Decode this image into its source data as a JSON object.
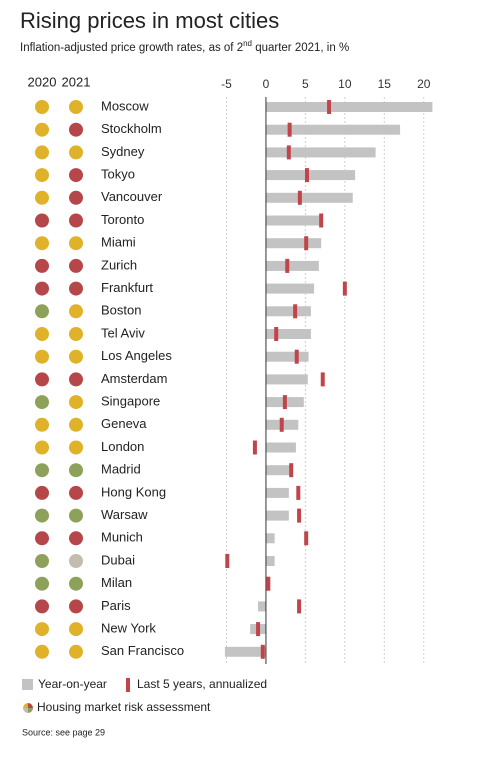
{
  "chart_data": {
    "type": "bar",
    "title": "Rising prices in most cities",
    "subtitle": [
      "Inflation-adjusted price growth rates, as of 2",
      "nd",
      " quarter 2021, in %"
    ],
    "risk_columns": [
      "2020",
      "2021"
    ],
    "categories": [
      "Moscow",
      "Stockholm",
      "Sydney",
      "Tokyo",
      "Vancouver",
      "Toronto",
      "Miami",
      "Zurich",
      "Frankfurt",
      "Boston",
      "Tel Aviv",
      "Los Angeles",
      "Amsterdam",
      "Singapore",
      "Geneva",
      "London",
      "Madrid",
      "Hong Kong",
      "Warsaw",
      "Munich",
      "Dubai",
      "Milan",
      "Paris",
      "New York",
      "San Francisco"
    ],
    "risk_2020": [
      "#e0b22a",
      "#e0b22a",
      "#e0b22a",
      "#e0b22a",
      "#e0b22a",
      "#b5474b",
      "#e0b22a",
      "#b5474b",
      "#b5474b",
      "#8da15a",
      "#e0b22a",
      "#e0b22a",
      "#b5474b",
      "#8da15a",
      "#e0b22a",
      "#e0b22a",
      "#8da15a",
      "#b5474b",
      "#8da15a",
      "#b5474b",
      "#8da15a",
      "#8da15a",
      "#b5474b",
      "#e0b22a",
      "#e0b22a"
    ],
    "risk_2021": [
      "#e0b22a",
      "#b5474b",
      "#e0b22a",
      "#b5474b",
      "#b5474b",
      "#b5474b",
      "#e0b22a",
      "#b5474b",
      "#b5474b",
      "#e0b22a",
      "#e0b22a",
      "#e0b22a",
      "#b5474b",
      "#e0b22a",
      "#e0b22a",
      "#e0b22a",
      "#8da15a",
      "#b5474b",
      "#8da15a",
      "#b5474b",
      "#c4bcae",
      "#8da15a",
      "#b5474b",
      "#e0b22a",
      "#e0b22a"
    ],
    "series": [
      {
        "name": "Year-on-year",
        "color": "#c3c3c3",
        "values": [
          21.1,
          17.0,
          13.9,
          11.3,
          11.0,
          7.2,
          7.0,
          6.7,
          6.1,
          5.7,
          5.7,
          5.4,
          5.3,
          4.8,
          4.1,
          3.8,
          3.4,
          2.9,
          2.9,
          1.1,
          1.1,
          0.3,
          -1.0,
          -2.0,
          -5.2
        ]
      },
      {
        "name": "Last 5 years, annualized",
        "color": "#c0444a",
        "values": [
          8.0,
          3.0,
          2.9,
          5.2,
          4.3,
          7.0,
          5.1,
          2.7,
          10.0,
          3.7,
          1.3,
          3.9,
          7.2,
          2.4,
          2.0,
          -1.4,
          3.2,
          4.1,
          4.2,
          5.1,
          -4.9,
          0.3,
          4.2,
          -1.0,
          -0.4
        ]
      }
    ],
    "risk_legend": "Housing market risk assessment",
    "xlim": [
      -5,
      21.3
    ],
    "xticks": [
      -5,
      0,
      5,
      10,
      15,
      20
    ],
    "grid": true,
    "source": "Source: see page 29"
  }
}
